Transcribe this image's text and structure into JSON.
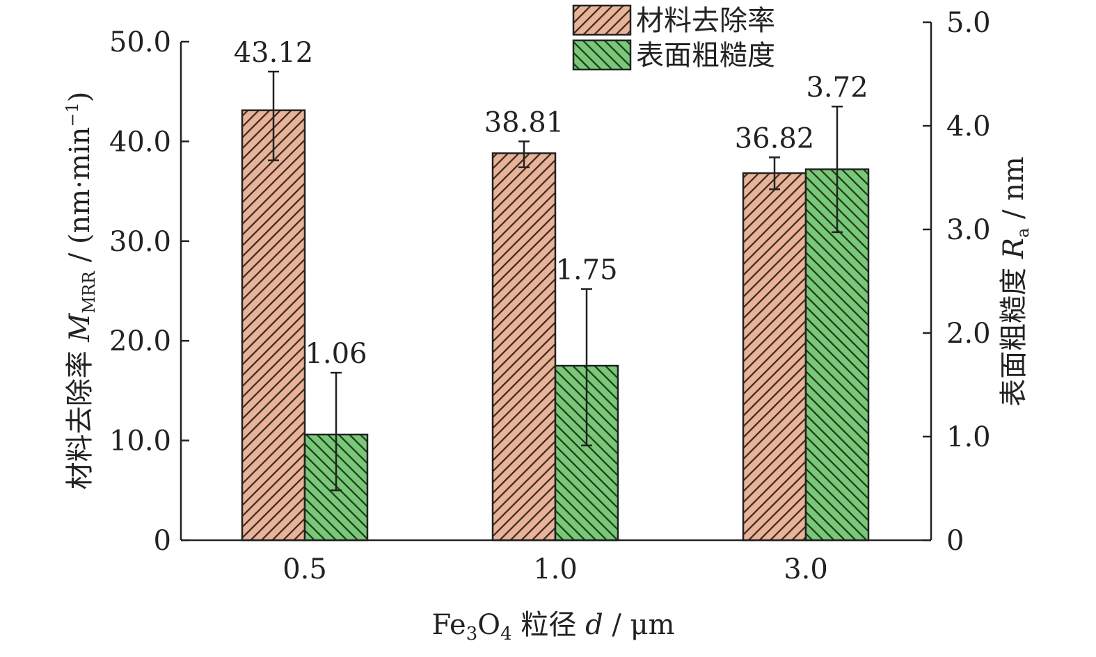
{
  "chart_data": {
    "type": "bar",
    "categories": [
      "0.5",
      "1.0",
      "3.0"
    ],
    "x_axis": {
      "label_prefix": "Fe",
      "label_sub1": "3",
      "label_mid": "O",
      "label_sub2": "4",
      "label_cn": " 粒径 ",
      "label_var": "d",
      "label_unit": " / μm"
    },
    "y_left": {
      "range": [
        0,
        50
      ],
      "ticks": [
        "0",
        "10.0",
        "20.0",
        "30.0",
        "40.0",
        "50.0"
      ],
      "label_cn": "材料去除率 ",
      "label_var": "M",
      "label_sub": "MRR",
      "label_unit": " / (nm·min",
      "label_sup": "−1",
      "label_close": ")"
    },
    "y_right": {
      "range": [
        0,
        5
      ],
      "ticks": [
        "0",
        "1.0",
        "2.0",
        "3.0",
        "4.0",
        "5.0"
      ],
      "label_cn": "表面粗糙度 ",
      "label_var": "R",
      "label_sub": "a",
      "label_unit": " / nm"
    },
    "series": [
      {
        "name": "材料去除率",
        "axis": "left",
        "values": [
          43.12,
          38.81,
          36.82
        ],
        "labels": [
          "43.12",
          "38.81",
          "36.82"
        ],
        "error": [
          [
            38.1,
            47.0
          ],
          [
            37.4,
            40.0
          ],
          [
            35.2,
            38.4
          ]
        ],
        "fill": "#e8b398",
        "hatch": "#3a2a20"
      },
      {
        "name": "表面粗糙度",
        "axis": "right",
        "values": [
          1.06,
          1.75,
          3.72
        ],
        "labels": [
          "1.06",
          "1.75",
          "3.72"
        ],
        "error": [
          [
            0.5,
            1.68
          ],
          [
            0.95,
            2.52
          ],
          [
            3.09,
            4.35
          ]
        ],
        "fill": "#78c878",
        "hatch": "#1e3a1e"
      }
    ],
    "legend_position": "top-right",
    "grid": false
  }
}
